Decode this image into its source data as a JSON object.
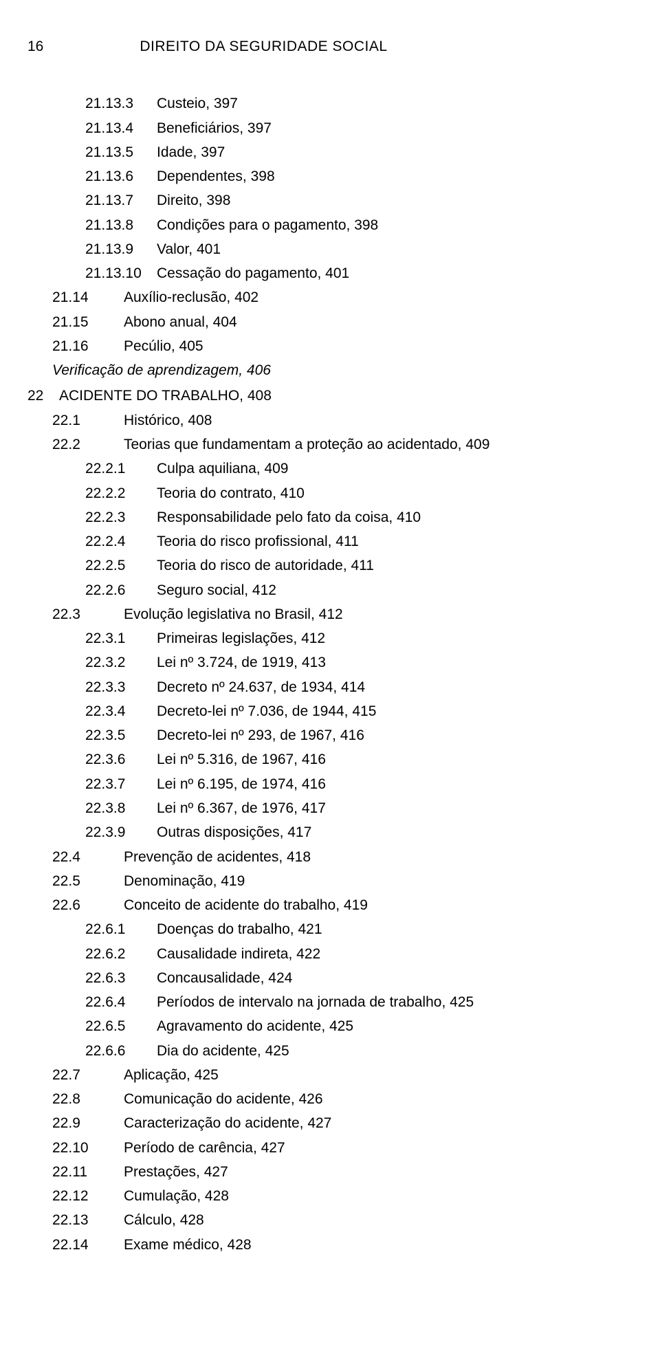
{
  "page_number": "16",
  "page_title": "DIREITO DA SEGURIDADE SOCIAL",
  "lines": [
    {
      "indent": 2,
      "num_class": "w-lvl2",
      "num": "21.13.3",
      "text": "Custeio, 397"
    },
    {
      "indent": 2,
      "num_class": "w-lvl2",
      "num": "21.13.4",
      "text": "Beneficiários, 397"
    },
    {
      "indent": 2,
      "num_class": "w-lvl2",
      "num": "21.13.5",
      "text": "Idade, 397"
    },
    {
      "indent": 2,
      "num_class": "w-lvl2",
      "num": "21.13.6",
      "text": "Dependentes, 398"
    },
    {
      "indent": 2,
      "num_class": "w-lvl2",
      "num": "21.13.7",
      "text": "Direito, 398"
    },
    {
      "indent": 2,
      "num_class": "w-lvl2",
      "num": "21.13.8",
      "text": "Condições para o pagamento, 398"
    },
    {
      "indent": 2,
      "num_class": "w-lvl2",
      "num": "21.13.9",
      "text": "Valor, 401"
    },
    {
      "indent": 2,
      "num_class": "w-lvl2",
      "num": "21.13.10",
      "text": "Cessação do pagamento, 401"
    },
    {
      "indent": 1,
      "num_class": "w-lvl1",
      "num": "21.14",
      "text": "Auxílio-reclusão, 402"
    },
    {
      "indent": 1,
      "num_class": "w-lvl1",
      "num": "21.15",
      "text": "Abono anual, 404"
    },
    {
      "indent": 1,
      "num_class": "w-lvl1",
      "num": "21.16",
      "text": "Pecúlio, 405"
    },
    {
      "indent": 1,
      "num_class": "",
      "num": "",
      "text": "Verificação de aprendizagem, 406",
      "italic": true,
      "pad": 104
    },
    {
      "indent": 0,
      "num_class": "w-chapter",
      "num": "22",
      "text": "ACIDENTE DO TRABALHO, 408",
      "gap": true
    },
    {
      "indent": 1,
      "num_class": "w-lvl1",
      "num": "22.1",
      "text": "Histórico, 408"
    },
    {
      "indent": 1,
      "num_class": "w-lvl1",
      "num": "22.2",
      "text": "Teorias que fundamentam a proteção ao acidentado, 409"
    },
    {
      "indent": 2,
      "num_class": "w-lvl2",
      "num": "22.2.1",
      "text": "Culpa aquiliana, 409"
    },
    {
      "indent": 2,
      "num_class": "w-lvl2",
      "num": "22.2.2",
      "text": "Teoria do contrato, 410"
    },
    {
      "indent": 2,
      "num_class": "w-lvl2",
      "num": "22.2.3",
      "text": "Responsabilidade pelo fato da coisa, 410"
    },
    {
      "indent": 2,
      "num_class": "w-lvl2",
      "num": "22.2.4",
      "text": "Teoria do risco profissional, 411"
    },
    {
      "indent": 2,
      "num_class": "w-lvl2",
      "num": "22.2.5",
      "text": "Teoria do risco de autoridade, 411"
    },
    {
      "indent": 2,
      "num_class": "w-lvl2",
      "num": "22.2.6",
      "text": "Seguro social, 412"
    },
    {
      "indent": 1,
      "num_class": "w-lvl1",
      "num": "22.3",
      "text": "Evolução legislativa no Brasil, 412"
    },
    {
      "indent": 2,
      "num_class": "w-lvl2",
      "num": "22.3.1",
      "text": "Primeiras legislações, 412"
    },
    {
      "indent": 2,
      "num_class": "w-lvl2",
      "num": "22.3.2",
      "text": "Lei nº 3.724, de 1919, 413"
    },
    {
      "indent": 2,
      "num_class": "w-lvl2",
      "num": "22.3.3",
      "text": "Decreto nº 24.637, de 1934, 414"
    },
    {
      "indent": 2,
      "num_class": "w-lvl2",
      "num": "22.3.4",
      "text": "Decreto-lei nº 7.036, de 1944, 415"
    },
    {
      "indent": 2,
      "num_class": "w-lvl2",
      "num": "22.3.5",
      "text": "Decreto-lei nº 293, de 1967, 416"
    },
    {
      "indent": 2,
      "num_class": "w-lvl2",
      "num": "22.3.6",
      "text": "Lei nº 5.316, de 1967, 416"
    },
    {
      "indent": 2,
      "num_class": "w-lvl2",
      "num": "22.3.7",
      "text": "Lei nº 6.195, de 1974, 416"
    },
    {
      "indent": 2,
      "num_class": "w-lvl2",
      "num": "22.3.8",
      "text": "Lei nº 6.367, de 1976, 417"
    },
    {
      "indent": 2,
      "num_class": "w-lvl2",
      "num": "22.3.9",
      "text": "Outras disposições, 417"
    },
    {
      "indent": 1,
      "num_class": "w-lvl1",
      "num": "22.4",
      "text": "Prevenção de acidentes, 418"
    },
    {
      "indent": 1,
      "num_class": "w-lvl1",
      "num": "22.5",
      "text": "Denominação, 419"
    },
    {
      "indent": 1,
      "num_class": "w-lvl1",
      "num": "22.6",
      "text": "Conceito de acidente do trabalho, 419"
    },
    {
      "indent": 2,
      "num_class": "w-lvl2",
      "num": "22.6.1",
      "text": "Doenças do trabalho, 421"
    },
    {
      "indent": 2,
      "num_class": "w-lvl2",
      "num": "22.6.2",
      "text": "Causalidade indireta, 422"
    },
    {
      "indent": 2,
      "num_class": "w-lvl2",
      "num": "22.6.3",
      "text": "Concausalidade, 424"
    },
    {
      "indent": 2,
      "num_class": "w-lvl2",
      "num": "22.6.4",
      "text": "Períodos de intervalo na jornada de trabalho, 425"
    },
    {
      "indent": 2,
      "num_class": "w-lvl2",
      "num": "22.6.5",
      "text": "Agravamento do acidente, 425"
    },
    {
      "indent": 2,
      "num_class": "w-lvl2",
      "num": "22.6.6",
      "text": "Dia do acidente, 425"
    },
    {
      "indent": 1,
      "num_class": "w-lvl1",
      "num": "22.7",
      "text": "Aplicação, 425"
    },
    {
      "indent": 1,
      "num_class": "w-lvl1",
      "num": "22.8",
      "text": "Comunicação do acidente, 426"
    },
    {
      "indent": 1,
      "num_class": "w-lvl1",
      "num": "22.9",
      "text": "Caracterização do acidente, 427"
    },
    {
      "indent": 1,
      "num_class": "w-lvl1",
      "num": "22.10",
      "text": "Período de carência, 427"
    },
    {
      "indent": 1,
      "num_class": "w-lvl1",
      "num": "22.11",
      "text": "Prestações, 427"
    },
    {
      "indent": 1,
      "num_class": "w-lvl1",
      "num": "22.12",
      "text": "Cumulação, 428"
    },
    {
      "indent": 1,
      "num_class": "w-lvl1",
      "num": "22.13",
      "text": "Cálculo, 428"
    },
    {
      "indent": 1,
      "num_class": "w-lvl1",
      "num": "22.14",
      "text": "Exame médico, 428"
    }
  ]
}
